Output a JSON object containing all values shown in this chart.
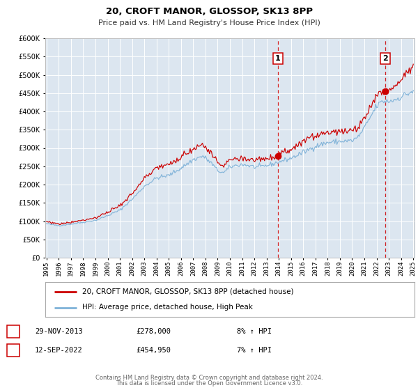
{
  "title": "20, CROFT MANOR, GLOSSOP, SK13 8PP",
  "subtitle": "Price paid vs. HM Land Registry's House Price Index (HPI)",
  "legend_line1": "20, CROFT MANOR, GLOSSOP, SK13 8PP (detached house)",
  "legend_line2": "HPI: Average price, detached house, High Peak",
  "annotation1_date": "29-NOV-2013",
  "annotation1_price": "£278,000",
  "annotation1_hpi": "8% ↑ HPI",
  "annotation2_date": "12-SEP-2022",
  "annotation2_price": "£454,950",
  "annotation2_hpi": "7% ↑ HPI",
  "footer_line1": "Contains HM Land Registry data © Crown copyright and database right 2024.",
  "footer_line2": "This data is licensed under the Open Government Licence v3.0.",
  "red_line_color": "#cc0000",
  "blue_line_color": "#7fb2d8",
  "plot_bg_color": "#dce6f0",
  "grid_color": "#ffffff",
  "annotation_vline_color": "#cc0000",
  "ylim": [
    0,
    600000
  ],
  "yticks": [
    0,
    50000,
    100000,
    150000,
    200000,
    250000,
    300000,
    350000,
    400000,
    450000,
    500000,
    550000,
    600000
  ],
  "start_year": 1995,
  "end_year": 2025,
  "annotation1_year": 2013.917,
  "annotation1_value": 278000,
  "annotation2_year": 2022.708,
  "annotation2_value": 454950
}
